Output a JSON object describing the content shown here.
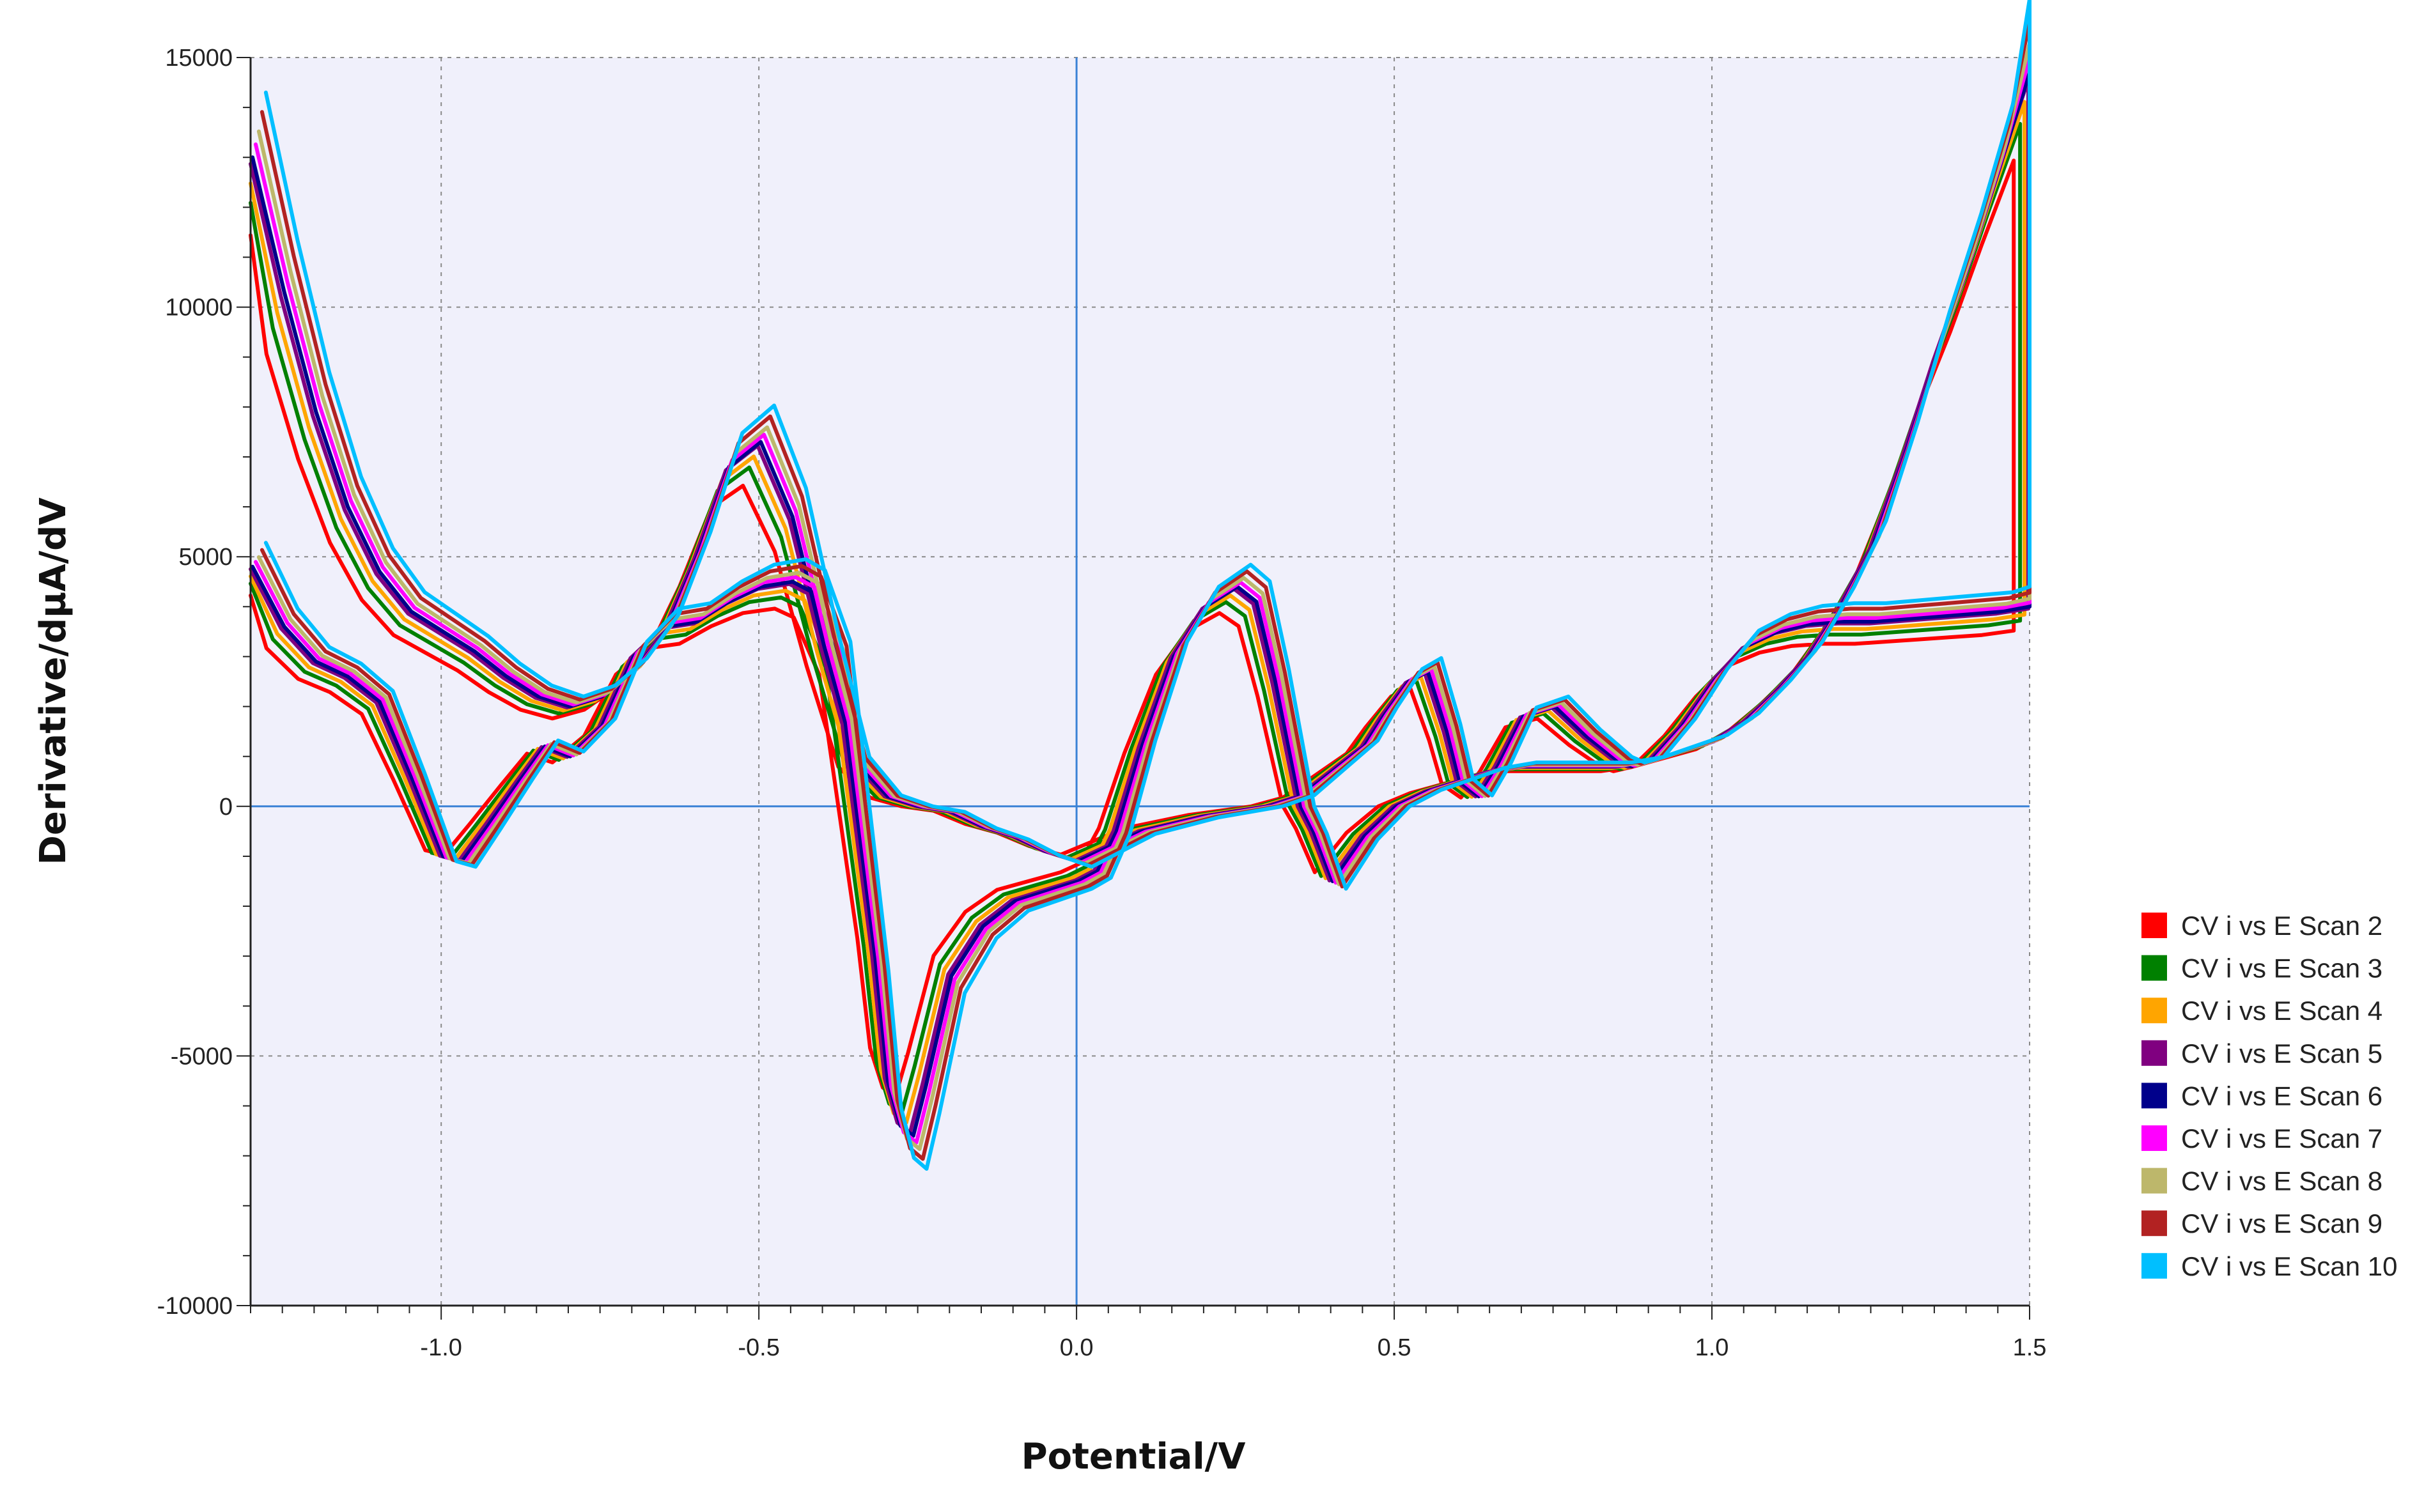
{
  "chart_data": {
    "type": "line",
    "title": "",
    "xlabel": "Potential/V",
    "ylabel": "Derivative/dµA/dV",
    "xlim": [
      -1.3,
      1.5
    ],
    "ylim": [
      -10000,
      15000
    ],
    "x_ticks": [
      -1.0,
      -0.5,
      0.0,
      0.5,
      1.0,
      1.5
    ],
    "x_tick_labels": [
      "-1.0",
      "-0.5",
      "0.0",
      "0.5",
      "1.0",
      "1.5"
    ],
    "y_ticks": [
      -10000,
      -5000,
      0,
      5000,
      10000,
      15000
    ],
    "y_tick_labels": [
      "-10000",
      "-5000",
      "0",
      "5000",
      "10000",
      "15000"
    ],
    "grid": true,
    "legend_position": "right",
    "background": "#f0f0fb",
    "zero_line_color": "#3b82d6",
    "base_curve": {
      "forward": [
        [
          -1.3,
          4800
        ],
        [
          -1.25,
          3600
        ],
        [
          -1.2,
          2900
        ],
        [
          -1.15,
          2600
        ],
        [
          -1.1,
          2100
        ],
        [
          -1.05,
          600
        ],
        [
          -1.0,
          -1000
        ],
        [
          -0.97,
          -1100
        ],
        [
          -0.93,
          -400
        ],
        [
          -0.88,
          500
        ],
        [
          -0.84,
          1200
        ],
        [
          -0.8,
          1000
        ],
        [
          -0.75,
          1600
        ],
        [
          -0.7,
          3000
        ],
        [
          -0.65,
          3600
        ],
        [
          -0.6,
          3700
        ],
        [
          -0.55,
          4100
        ],
        [
          -0.5,
          4400
        ],
        [
          -0.45,
          4500
        ],
        [
          -0.42,
          4300
        ],
        [
          -0.38,
          3000
        ],
        [
          -0.35,
          0
        ],
        [
          -0.32,
          -3000
        ],
        [
          -0.3,
          -5500
        ],
        [
          -0.28,
          -6400
        ],
        [
          -0.26,
          -6600
        ],
        [
          -0.24,
          -5600
        ],
        [
          -0.2,
          -3400
        ],
        [
          -0.15,
          -2400
        ],
        [
          -0.1,
          -1900
        ],
        [
          -0.05,
          -1700
        ],
        [
          0.0,
          -1500
        ],
        [
          0.03,
          -1300
        ],
        [
          0.06,
          -500
        ],
        [
          0.1,
          1200
        ],
        [
          0.15,
          3000
        ],
        [
          0.2,
          4000
        ],
        [
          0.25,
          4400
        ],
        [
          0.28,
          4100
        ],
        [
          0.31,
          2500
        ],
        [
          0.35,
          0
        ],
        [
          0.37,
          -500
        ],
        [
          0.4,
          -1500
        ],
        [
          0.45,
          -600
        ],
        [
          0.5,
          0
        ],
        [
          0.55,
          300
        ],
        [
          0.6,
          500
        ],
        [
          0.65,
          700
        ],
        [
          0.7,
          800
        ],
        [
          0.75,
          800
        ],
        [
          0.8,
          800
        ],
        [
          0.85,
          800
        ],
        [
          0.9,
          900
        ],
        [
          1.0,
          1300
        ],
        [
          1.05,
          1700
        ],
        [
          1.1,
          2300
        ],
        [
          1.15,
          3000
        ],
        [
          1.2,
          4000
        ],
        [
          1.25,
          5200
        ],
        [
          1.3,
          7000
        ],
        [
          1.35,
          9000
        ],
        [
          1.4,
          10800
        ],
        [
          1.45,
          12800
        ],
        [
          1.5,
          14700
        ]
      ],
      "reverse": [
        [
          1.5,
          4000
        ],
        [
          1.45,
          3900
        ],
        [
          1.4,
          3850
        ],
        [
          1.35,
          3800
        ],
        [
          1.3,
          3750
        ],
        [
          1.25,
          3700
        ],
        [
          1.2,
          3700
        ],
        [
          1.15,
          3650
        ],
        [
          1.1,
          3500
        ],
        [
          1.05,
          3200
        ],
        [
          1.0,
          2500
        ],
        [
          0.95,
          1600
        ],
        [
          0.9,
          900
        ],
        [
          0.87,
          800
        ],
        [
          0.85,
          900
        ],
        [
          0.8,
          1400
        ],
        [
          0.75,
          2000
        ],
        [
          0.7,
          1800
        ],
        [
          0.66,
          800
        ],
        [
          0.63,
          200
        ],
        [
          0.6,
          500
        ],
        [
          0.58,
          1500
        ],
        [
          0.55,
          2700
        ],
        [
          0.52,
          2500
        ],
        [
          0.48,
          1800
        ],
        [
          0.45,
          1200
        ],
        [
          0.4,
          700
        ],
        [
          0.35,
          200
        ],
        [
          0.3,
          0
        ],
        [
          0.25,
          -100
        ],
        [
          0.2,
          -200
        ],
        [
          0.1,
          -500
        ],
        [
          0.05,
          -800
        ],
        [
          0.0,
          -1100
        ],
        [
          -0.05,
          -900
        ],
        [
          -0.1,
          -600
        ],
        [
          -0.15,
          -400
        ],
        [
          -0.2,
          -100
        ],
        [
          -0.25,
          0
        ],
        [
          -0.3,
          200
        ],
        [
          -0.35,
          900
        ],
        [
          -0.4,
          3200
        ],
        [
          -0.45,
          5800
        ],
        [
          -0.5,
          7300
        ],
        [
          -0.55,
          6800
        ],
        [
          -0.6,
          5000
        ],
        [
          -0.65,
          3500
        ],
        [
          -0.7,
          2700
        ],
        [
          -0.75,
          2200
        ],
        [
          -0.8,
          2000
        ],
        [
          -0.85,
          2200
        ],
        [
          -0.9,
          2600
        ],
        [
          -0.95,
          3100
        ],
        [
          -1.0,
          3500
        ],
        [
          -1.05,
          3900
        ],
        [
          -1.1,
          4700
        ],
        [
          -1.15,
          6000
        ],
        [
          -1.2,
          7900
        ],
        [
          -1.25,
          10300
        ],
        [
          -1.3,
          13000
        ]
      ]
    },
    "series": [
      {
        "name": "CV i vs E Scan 2",
        "color": "#ff0000",
        "shift": -0.025,
        "scale": 0.88
      },
      {
        "name": "CV i vs E Scan 3",
        "color": "#008000",
        "shift": -0.015,
        "scale": 0.93
      },
      {
        "name": "CV i vs E Scan 4",
        "color": "#ffa500",
        "shift": -0.008,
        "scale": 0.96
      },
      {
        "name": "CV i vs E Scan 5",
        "color": "#800080",
        "shift": -0.002,
        "scale": 0.99
      },
      {
        "name": "CV i vs E Scan 6",
        "color": "#00008b",
        "shift": 0.003,
        "scale": 1.0
      },
      {
        "name": "CV i vs E Scan 7",
        "color": "#ff00ff",
        "shift": 0.008,
        "scale": 1.02
      },
      {
        "name": "CV i vs E Scan 8",
        "color": "#bdb76b",
        "shift": 0.013,
        "scale": 1.04
      },
      {
        "name": "CV i vs E Scan 9",
        "color": "#b22222",
        "shift": 0.018,
        "scale": 1.07
      },
      {
        "name": "CV i vs E Scan 10",
        "color": "#00bfff",
        "shift": 0.024,
        "scale": 1.1
      }
    ]
  }
}
